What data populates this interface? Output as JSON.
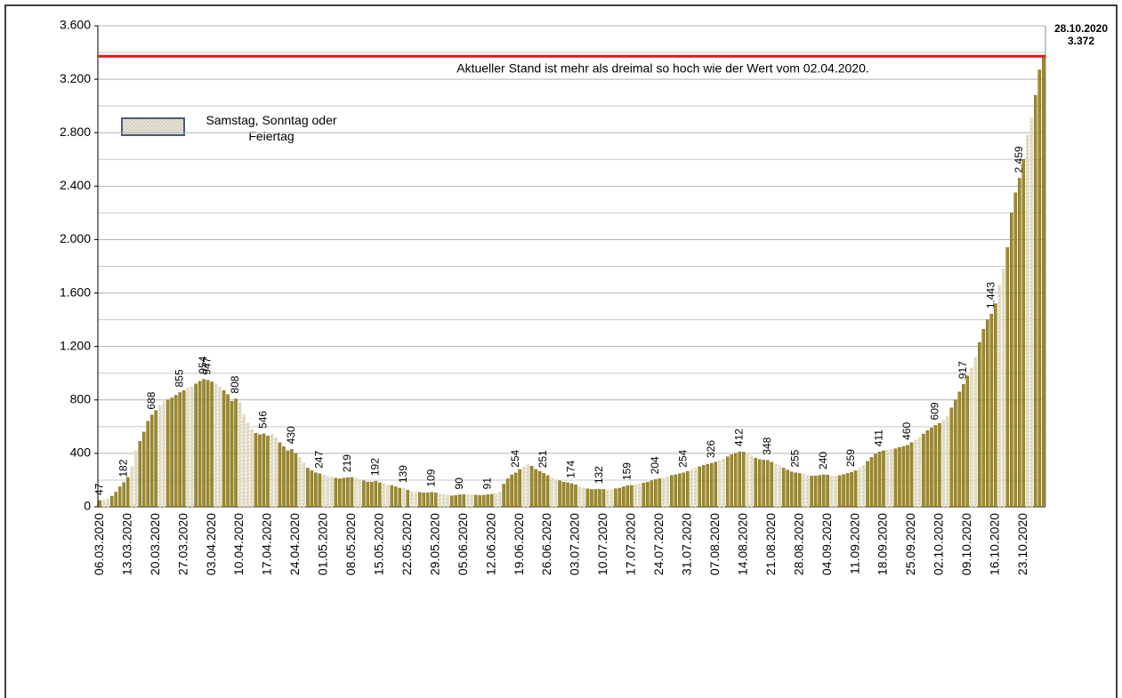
{
  "chart_data": {
    "type": "bar",
    "categories": [
      "06.03.2020",
      null,
      null,
      null,
      null,
      null,
      null,
      "13.03.2020",
      null,
      null,
      null,
      null,
      null,
      null,
      "20.03.2020",
      null,
      null,
      null,
      null,
      null,
      null,
      "27.03.2020",
      null,
      null,
      null,
      null,
      null,
      null,
      "03.04.2020",
      null,
      null,
      null,
      null,
      null,
      null,
      "10.04.2020",
      null,
      null,
      null,
      null,
      null,
      null,
      "17.04.2020",
      null,
      null,
      null,
      null,
      null,
      null,
      "24.04.2020",
      null,
      null,
      null,
      null,
      null,
      null,
      "01.05.2020",
      null,
      null,
      null,
      null,
      null,
      null,
      "08.05.2020",
      null,
      null,
      null,
      null,
      null,
      null,
      "15.05.2020",
      null,
      null,
      null,
      null,
      null,
      null,
      "22.05.2020",
      null,
      null,
      null,
      null,
      null,
      null,
      "29.05.2020",
      null,
      null,
      null,
      null,
      null,
      null,
      "05.06.2020",
      null,
      null,
      null,
      null,
      null,
      null,
      "12.06.2020",
      null,
      null,
      null,
      null,
      null,
      null,
      "19.06.2020",
      null,
      null,
      null,
      null,
      null,
      null,
      "26.06.2020",
      null,
      null,
      null,
      null,
      null,
      null,
      "03.07.2020",
      null,
      null,
      null,
      null,
      null,
      null,
      "10.07.2020",
      null,
      null,
      null,
      null,
      null,
      null,
      "17.07.2020",
      null,
      null,
      null,
      null,
      null,
      null,
      "24.07.2020",
      null,
      null,
      null,
      null,
      null,
      null,
      "31.07.2020",
      null,
      null,
      null,
      null,
      null,
      null,
      "07.08.2020",
      null,
      null,
      null,
      null,
      null,
      null,
      "14.08.2020",
      null,
      null,
      null,
      null,
      null,
      null,
      "21.08.2020",
      null,
      null,
      null,
      null,
      null,
      null,
      "28.08.2020",
      null,
      null,
      null,
      null,
      null,
      null,
      "04.09.2020",
      null,
      null,
      null,
      null,
      null,
      null,
      "11.09.2020",
      null,
      null,
      null,
      null,
      null,
      null,
      "18.09.2020",
      null,
      null,
      null,
      null,
      null,
      null,
      "25.09.2020",
      null,
      null,
      null,
      null,
      null,
      null,
      "02.10.2020",
      null,
      null,
      null,
      null,
      null,
      null,
      "09.10.2020",
      null,
      null,
      null,
      null,
      null,
      null,
      "16.10.2020",
      null,
      null,
      null,
      null,
      null,
      null,
      "23.10.2020",
      null,
      null,
      null,
      null,
      null
    ],
    "values": [
      47,
      50,
      60,
      80,
      110,
      150,
      182,
      220,
      300,
      420,
      490,
      560,
      640,
      688,
      720,
      760,
      790,
      800,
      815,
      835,
      855,
      870,
      890,
      900,
      920,
      940,
      954,
      947,
      935,
      920,
      900,
      870,
      840,
      790,
      808,
      780,
      690,
      630,
      580,
      550,
      540,
      546,
      530,
      545,
      520,
      480,
      450,
      420,
      430,
      400,
      370,
      330,
      290,
      270,
      255,
      247,
      240,
      230,
      225,
      215,
      210,
      215,
      219,
      220,
      215,
      205,
      195,
      185,
      185,
      192,
      180,
      175,
      165,
      160,
      150,
      140,
      139,
      125,
      115,
      110,
      108,
      105,
      106,
      109,
      105,
      100,
      95,
      88,
      82,
      85,
      90,
      92,
      95,
      90,
      88,
      86,
      88,
      91,
      95,
      100,
      110,
      170,
      210,
      240,
      254,
      280,
      300,
      315,
      305,
      280,
      265,
      251,
      235,
      220,
      205,
      195,
      185,
      180,
      174,
      165,
      150,
      140,
      135,
      130,
      130,
      132,
      130,
      128,
      130,
      135,
      140,
      150,
      159,
      160,
      165,
      170,
      178,
      185,
      195,
      204,
      210,
      215,
      225,
      235,
      240,
      248,
      254,
      265,
      280,
      290,
      300,
      310,
      318,
      326,
      335,
      345,
      360,
      375,
      390,
      400,
      412,
      410,
      400,
      385,
      365,
      355,
      350,
      348,
      335,
      320,
      305,
      290,
      275,
      262,
      255,
      250,
      245,
      238,
      230,
      232,
      236,
      240,
      238,
      232,
      230,
      235,
      242,
      250,
      259,
      270,
      290,
      310,
      340,
      370,
      395,
      411,
      420,
      425,
      430,
      435,
      445,
      452,
      460,
      480,
      500,
      520,
      545,
      570,
      590,
      609,
      625,
      650,
      680,
      740,
      800,
      860,
      917,
      980,
      1040,
      1120,
      1230,
      1330,
      1400,
      1443,
      1520,
      1660,
      1780,
      1940,
      2200,
      2350,
      2459,
      2600,
      2780,
      2910,
      3080,
      3270,
      3372
    ],
    "value_labels": [
      "47",
      null,
      null,
      null,
      null,
      null,
      "182",
      null,
      null,
      null,
      null,
      null,
      null,
      "688",
      null,
      null,
      null,
      null,
      null,
      null,
      "855",
      null,
      null,
      null,
      null,
      null,
      "954",
      "947",
      null,
      null,
      null,
      null,
      null,
      null,
      "808",
      null,
      null,
      null,
      null,
      null,
      null,
      "546",
      null,
      null,
      null,
      null,
      null,
      null,
      "430",
      null,
      null,
      null,
      null,
      null,
      null,
      "247",
      null,
      null,
      null,
      null,
      null,
      null,
      "219",
      null,
      null,
      null,
      null,
      null,
      null,
      "192",
      null,
      null,
      null,
      null,
      null,
      null,
      "139",
      null,
      null,
      null,
      null,
      null,
      null,
      "109",
      null,
      null,
      null,
      null,
      null,
      null,
      "90",
      null,
      null,
      null,
      null,
      null,
      null,
      "91",
      null,
      null,
      null,
      null,
      null,
      null,
      "254",
      null,
      null,
      null,
      null,
      null,
      null,
      "251",
      null,
      null,
      null,
      null,
      null,
      null,
      "174",
      null,
      null,
      null,
      null,
      null,
      null,
      "132",
      null,
      null,
      null,
      null,
      null,
      null,
      "159",
      null,
      null,
      null,
      null,
      null,
      null,
      "204",
      null,
      null,
      null,
      null,
      null,
      null,
      "254",
      null,
      null,
      null,
      null,
      null,
      null,
      "326",
      null,
      null,
      null,
      null,
      null,
      null,
      "412",
      null,
      null,
      null,
      null,
      null,
      null,
      "348",
      null,
      null,
      null,
      null,
      null,
      null,
      "255",
      null,
      null,
      null,
      null,
      null,
      null,
      "240",
      null,
      null,
      null,
      null,
      null,
      null,
      "259",
      null,
      null,
      null,
      null,
      null,
      null,
      "411",
      null,
      null,
      null,
      null,
      null,
      null,
      "460",
      null,
      null,
      null,
      null,
      null,
      null,
      "609",
      null,
      null,
      null,
      null,
      null,
      null,
      "917",
      null,
      null,
      null,
      null,
      null,
      null,
      "1.443",
      null,
      null,
      null,
      null,
      null,
      null,
      "2.459",
      null,
      null,
      null,
      null,
      null,
      null
    ],
    "color": "#9c8a2e",
    "highlight_color": "#e8dcb0",
    "highlight": [
      1,
      2,
      8,
      9,
      15,
      16,
      22,
      23,
      29,
      30,
      35,
      36,
      37,
      38,
      43,
      44,
      50,
      51,
      56,
      57,
      58,
      64,
      65,
      71,
      72,
      76,
      78,
      79,
      85,
      86,
      87,
      92,
      93,
      99,
      100,
      106,
      107,
      113,
      114,
      120,
      121,
      127,
      128,
      134,
      135,
      141,
      142,
      148,
      149,
      155,
      156,
      162,
      163,
      169,
      170,
      176,
      177,
      183,
      184,
      190,
      191,
      197,
      198,
      204,
      205,
      211,
      212,
      218,
      219,
      225,
      226,
      232,
      233
    ],
    "legend_label": "Samstag, Sonntag oder Feiertag",
    "reference": {
      "value": 3372,
      "label": "3.372",
      "date": "28.10.2020",
      "color": "#e8141c",
      "text": "Aktueller Stand ist mehr als dreimal so hoch wie der Wert vom 02.04.2020."
    },
    "ylim": [
      0,
      3600
    ],
    "yticks": [
      0,
      400,
      800,
      {
        "value": 1200,
        "label": "1.200"
      },
      {
        "value": 1600,
        "label": "1.600"
      },
      {
        "value": 2000,
        "label": "2.000"
      },
      {
        "value": 2400,
        "label": "2.400"
      },
      {
        "value": 2800,
        "label": "2.800"
      },
      {
        "value": 3200,
        "label": "3.200"
      },
      {
        "value": 3600,
        "label": "3.600"
      }
    ],
    "yminor": 200,
    "grid": true
  }
}
